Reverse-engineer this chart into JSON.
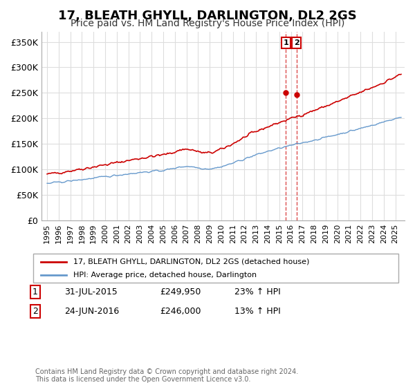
{
  "title": "17, BLEATH GHYLL, DARLINGTON, DL2 2GS",
  "subtitle": "Price paid vs. HM Land Registry's House Price Index (HPI)",
  "ylabel_ticks": [
    "£0",
    "£50K",
    "£100K",
    "£150K",
    "£200K",
    "£250K",
    "£300K",
    "£350K"
  ],
  "ytick_values": [
    0,
    50000,
    100000,
    150000,
    200000,
    250000,
    300000,
    350000
  ],
  "ylim": [
    0,
    370000
  ],
  "line1_color": "#cc0000",
  "line2_color": "#6699cc",
  "line1_label": "17, BLEATH GHYLL, DARLINGTON, DL2 2GS (detached house)",
  "line2_label": "HPI: Average price, detached house, Darlington",
  "marker1_date": 2015.58,
  "marker1_price": 249950,
  "marker1_label": "1",
  "marker2_date": 2016.48,
  "marker2_price": 246000,
  "marker2_label": "2",
  "footnote": "Contains HM Land Registry data © Crown copyright and database right 2024.\nThis data is licensed under the Open Government Licence v3.0.",
  "background_color": "#ffffff",
  "grid_color": "#dddddd",
  "title_fontsize": 13,
  "subtitle_fontsize": 10,
  "row1_date": "31-JUL-2015",
  "row1_price": "£249,950",
  "row1_hpi": "23% ↑ HPI",
  "row2_date": "24-JUN-2016",
  "row2_price": "£246,000",
  "row2_hpi": "13% ↑ HPI"
}
